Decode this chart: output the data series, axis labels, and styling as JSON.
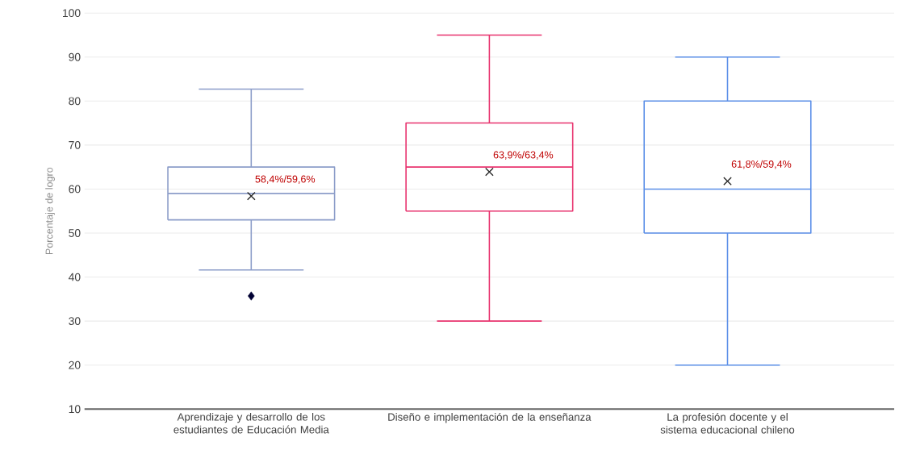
{
  "chart_data": {
    "type": "box",
    "ylabel": "Porcentaje de logro",
    "categories": [
      "Aprendizaje y desarrollo de los estudiantes de Educación Media",
      "Diseño e implementación de la enseñanza",
      "La profesión docente y el sistema educacional chileno"
    ],
    "boxes": [
      {
        "low": 41.6,
        "q1": 53,
        "median": 59,
        "q3": 65,
        "high": 82.7,
        "mean": 58.4,
        "outliers": [
          35.7
        ]
      },
      {
        "low": 30,
        "q1": 55,
        "median": 65,
        "q3": 75,
        "high": 95,
        "mean": 63.9
      },
      {
        "low": 20,
        "q1": 50,
        "median": 60,
        "q3": 80,
        "high": 90,
        "mean": 61.8
      }
    ],
    "colors": [
      "#8c9dc9",
      "#e8336e",
      "#5b8fe8"
    ],
    "annotations": [
      "58,4%/59,6%",
      "63,9%/63,4%",
      "61,8%/59,4%"
    ],
    "ylim": [
      10,
      100
    ],
    "yticks": [
      10,
      20,
      30,
      40,
      50,
      60,
      70,
      80,
      90,
      100
    ],
    "grid": "y"
  }
}
